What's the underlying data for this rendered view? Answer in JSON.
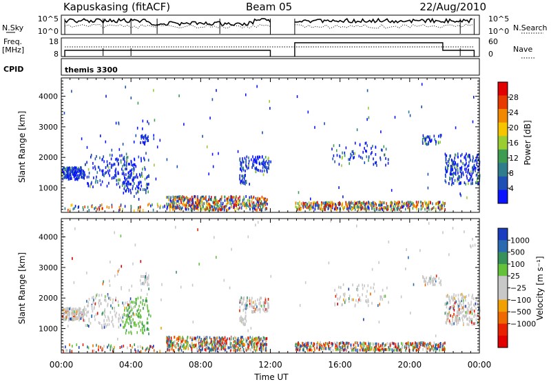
{
  "header": {
    "station": "Kapuskasing (fitACF)",
    "beam": "Beam 05",
    "date": "22/Aug/2010"
  },
  "panels": {
    "nsky": {
      "label": "N.Sky",
      "tick_hi": "10^5",
      "tick_lo": "10^0",
      "right_tick_hi": "10^5",
      "right_tick_lo": "10^0",
      "right_label": "N.Search"
    },
    "freq": {
      "label_top": "Freq.",
      "label_bottom": "[MHz]",
      "tick_hi": "18",
      "tick_lo": "8",
      "right_tick_hi": "60",
      "right_tick_lo": "0",
      "right_label": "Nave"
    },
    "cpid": {
      "label": "CPID",
      "program": "themis 3300"
    }
  },
  "chart_data": [
    {
      "type": "heatmap",
      "panel": "power",
      "xlabel": "",
      "ylabel": "Slant Range [km]",
      "x_range_hours": [
        0,
        24
      ],
      "ylim": [
        200,
        4600
      ],
      "yticks": [
        "1000",
        "2000",
        "3000",
        "4000"
      ],
      "colorbar_label": "Power [dB]",
      "colorbar_ticks": [
        "4",
        "8",
        "12",
        "16",
        "20",
        "24",
        "28"
      ],
      "colorbar_colors": [
        "#0a14ff",
        "#1e4fb4",
        "#2e7d8c",
        "#3e9b52",
        "#9acd32",
        "#f7c400",
        "#f08800",
        "#e63a00",
        "#e00000"
      ],
      "data_gaps_hours": [
        [
          12.0,
          13.4
        ]
      ]
    },
    {
      "type": "heatmap",
      "panel": "velocity",
      "xlabel": "Time UT",
      "ylabel": "Slant Range [km]",
      "x_range_hours": [
        0,
        24
      ],
      "ylim": [
        200,
        4600
      ],
      "yticks": [
        "1000",
        "2000",
        "3000",
        "4000"
      ],
      "xticks": [
        "00:00",
        "04:00",
        "08:00",
        "12:00",
        "16:00",
        "20:00",
        "00:00"
      ],
      "colorbar_label": "Velocity [m s⁻¹]",
      "colorbar_ticks": [
        "1000",
        "500",
        "100",
        "25",
        "−25",
        "−100",
        "−500",
        "−1000"
      ],
      "colorbar_colors": [
        "#1a3cbe",
        "#2a6ab0",
        "#37925a",
        "#63c23a",
        "#c8c8c8",
        "#c8c8c8",
        "#f0a000",
        "#ee6a00",
        "#e82200",
        "#e00000"
      ],
      "data_gaps_hours": [
        [
          12.0,
          13.4
        ]
      ]
    }
  ]
}
